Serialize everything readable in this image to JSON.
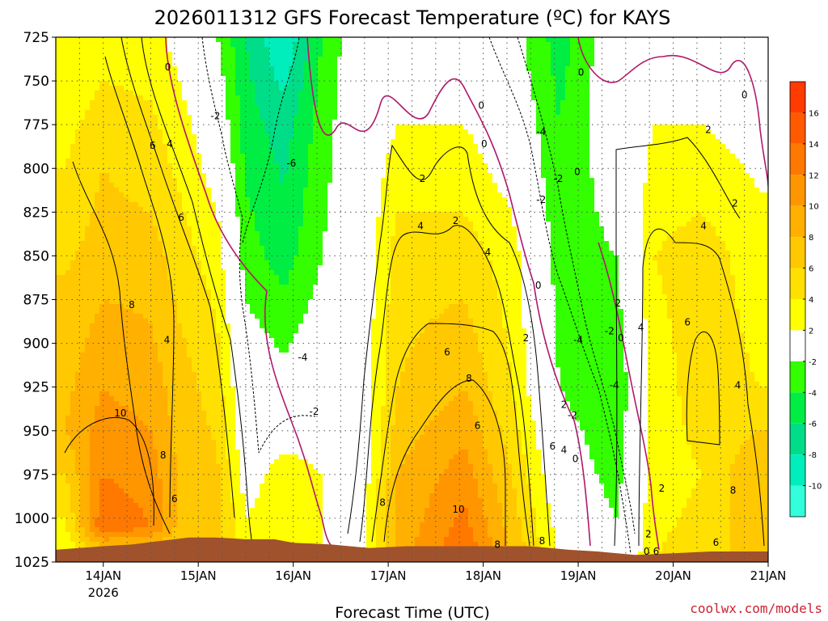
{
  "chart_data": {
    "type": "heatmap",
    "title": "2026011312 GFS Forecast Temperature (ºC) for KAYS",
    "xlabel": "Forecast Time (UTC)",
    "ylabel": "",
    "credit": "coolwx.com/models",
    "y_levels": [
      725,
      750,
      775,
      800,
      825,
      850,
      875,
      900,
      925,
      950,
      975,
      1000,
      1025
    ],
    "y_range": [
      725,
      1025
    ],
    "x_range": [
      "2026-01-13T12",
      "2026-01-21T00"
    ],
    "x_ticks": [
      {
        "day": 14,
        "label": "14JAN",
        "sub": "2026"
      },
      {
        "day": 15,
        "label": "15JAN",
        "sub": ""
      },
      {
        "day": 16,
        "label": "16JAN",
        "sub": ""
      },
      {
        "day": 17,
        "label": "17JAN",
        "sub": ""
      },
      {
        "day": 18,
        "label": "18JAN",
        "sub": ""
      },
      {
        "day": 19,
        "label": "19JAN",
        "sub": ""
      },
      {
        "day": 20,
        "label": "20JAN",
        "sub": ""
      },
      {
        "day": 21,
        "label": "21JAN",
        "sub": ""
      }
    ],
    "colorbar": {
      "labels": [
        16,
        14,
        12,
        10,
        8,
        6,
        4,
        2,
        -2,
        -4,
        -6,
        -8,
        -10
      ],
      "bins": [
        {
          "lo": 16,
          "hi": 18,
          "color": "#ff3b00"
        },
        {
          "lo": 14,
          "hi": 16,
          "color": "#ff5a00"
        },
        {
          "lo": 12,
          "hi": 14,
          "color": "#ff7800"
        },
        {
          "lo": 10,
          "hi": 12,
          "color": "#ff9600"
        },
        {
          "lo": 8,
          "hi": 10,
          "color": "#ffb000"
        },
        {
          "lo": 6,
          "hi": 8,
          "color": "#ffc800"
        },
        {
          "lo": 4,
          "hi": 6,
          "color": "#ffe000"
        },
        {
          "lo": 2,
          "hi": 4,
          "color": "#ffff00"
        },
        {
          "lo": -2,
          "hi": 2,
          "color": "#ffffff"
        },
        {
          "lo": -4,
          "hi": -2,
          "color": "#33ff00"
        },
        {
          "lo": -6,
          "hi": -4,
          "color": "#00ee44"
        },
        {
          "lo": -8,
          "hi": -6,
          "color": "#00dd88"
        },
        {
          "lo": -10,
          "hi": -8,
          "color": "#00eebb"
        },
        {
          "lo": -12,
          "hi": -10,
          "color": "#33ffdd"
        }
      ]
    },
    "ground_color": "#a0522d",
    "series": [
      {
        "values": [
          [
            13.6,
            1025,
            2
          ],
          [
            13.6,
            950,
            8
          ],
          [
            13.6,
            860,
            6
          ],
          [
            13.6,
            800,
            4
          ],
          [
            13.6,
            725,
            2
          ],
          [
            14.0,
            1025,
            3
          ],
          [
            14.0,
            1005,
            14
          ],
          [
            14.0,
            975,
            12
          ],
          [
            14.0,
            925,
            10
          ],
          [
            14.0,
            850,
            7
          ],
          [
            14.0,
            800,
            6
          ],
          [
            14.0,
            725,
            3
          ],
          [
            14.5,
            1025,
            4
          ],
          [
            14.5,
            1005,
            12
          ],
          [
            14.5,
            975,
            11
          ],
          [
            14.5,
            925,
            9
          ],
          [
            14.5,
            850,
            7
          ],
          [
            14.5,
            800,
            5
          ],
          [
            14.5,
            725,
            3
          ],
          [
            14.8,
            1025,
            5
          ],
          [
            14.8,
            1000,
            8
          ],
          [
            14.8,
            925,
            7
          ],
          [
            14.8,
            850,
            5
          ],
          [
            14.8,
            775,
            3
          ],
          [
            14.8,
            725,
            1
          ],
          [
            15.2,
            1025,
            5
          ],
          [
            15.2,
            1000,
            7
          ],
          [
            15.2,
            925,
            5
          ],
          [
            15.2,
            850,
            3
          ],
          [
            15.2,
            775,
            0
          ],
          [
            15.2,
            725,
            -2
          ],
          [
            15.5,
            1025,
            4
          ],
          [
            15.5,
            1000,
            2
          ],
          [
            15.5,
            950,
            0
          ],
          [
            15.5,
            900,
            -1
          ],
          [
            15.5,
            850,
            -3
          ],
          [
            15.5,
            775,
            -5
          ],
          [
            15.5,
            725,
            -6
          ],
          [
            15.9,
            1025,
            3
          ],
          [
            15.9,
            975,
            3
          ],
          [
            15.9,
            925,
            -1
          ],
          [
            15.9,
            850,
            -5
          ],
          [
            15.9,
            775,
            -7
          ],
          [
            15.9,
            725,
            -10
          ],
          [
            16.3,
            1025,
            2
          ],
          [
            16.3,
            975,
            2
          ],
          [
            16.3,
            925,
            0
          ],
          [
            16.3,
            850,
            -2
          ],
          [
            16.3,
            775,
            -3
          ],
          [
            16.3,
            725,
            -4
          ],
          [
            16.7,
            1025,
            1
          ],
          [
            16.7,
            975,
            0
          ],
          [
            16.7,
            925,
            0
          ],
          [
            16.7,
            850,
            0
          ],
          [
            16.7,
            725,
            0
          ],
          [
            17.1,
            1025,
            9
          ],
          [
            17.1,
            975,
            8
          ],
          [
            17.1,
            925,
            6
          ],
          [
            17.1,
            850,
            5
          ],
          [
            17.1,
            800,
            3
          ],
          [
            17.1,
            725,
            0
          ],
          [
            17.8,
            1025,
            14
          ],
          [
            17.8,
            975,
            11
          ],
          [
            17.8,
            925,
            8
          ],
          [
            17.8,
            850,
            5
          ],
          [
            17.8,
            800,
            3
          ],
          [
            17.8,
            725,
            0
          ],
          [
            18.3,
            1025,
            8
          ],
          [
            18.3,
            975,
            6
          ],
          [
            18.3,
            925,
            4
          ],
          [
            18.3,
            850,
            3
          ],
          [
            18.3,
            800,
            1
          ],
          [
            18.3,
            725,
            -1
          ],
          [
            18.8,
            1025,
            2
          ],
          [
            18.8,
            975,
            0
          ],
          [
            18.8,
            925,
            -2
          ],
          [
            18.8,
            850,
            -3
          ],
          [
            18.8,
            775,
            -4
          ],
          [
            18.8,
            725,
            -5
          ],
          [
            19.4,
            1025,
            -1
          ],
          [
            19.4,
            975,
            -3
          ],
          [
            19.4,
            925,
            -4
          ],
          [
            19.4,
            850,
            -2
          ],
          [
            19.4,
            775,
            0
          ],
          [
            19.4,
            725,
            0
          ],
          [
            19.8,
            1025,
            4
          ],
          [
            19.8,
            975,
            3
          ],
          [
            19.8,
            925,
            3
          ],
          [
            19.8,
            850,
            4
          ],
          [
            19.8,
            775,
            2
          ],
          [
            19.8,
            725,
            0
          ],
          [
            20.3,
            1025,
            5
          ],
          [
            20.3,
            975,
            4
          ],
          [
            20.3,
            925,
            5
          ],
          [
            20.3,
            850,
            5
          ],
          [
            20.3,
            800,
            3
          ],
          [
            20.3,
            725,
            0
          ],
          [
            20.9,
            1025,
            7
          ],
          [
            20.9,
            975,
            8
          ],
          [
            20.9,
            925,
            4
          ],
          [
            20.9,
            850,
            3
          ],
          [
            20.9,
            775,
            1
          ],
          [
            20.9,
            725,
            -1
          ]
        ]
      }
    ],
    "contour_labels": [
      {
        "x": 14.68,
        "y": 742,
        "v": "0"
      },
      {
        "x": 14.52,
        "y": 787,
        "v": "6"
      },
      {
        "x": 14.7,
        "y": 786,
        "v": "4"
      },
      {
        "x": 14.82,
        "y": 828,
        "v": "6"
      },
      {
        "x": 14.3,
        "y": 878,
        "v": "8"
      },
      {
        "x": 14.67,
        "y": 898,
        "v": "4"
      },
      {
        "x": 14.18,
        "y": 940,
        "v": "10"
      },
      {
        "x": 14.63,
        "y": 964,
        "v": "8"
      },
      {
        "x": 14.75,
        "y": 989,
        "v": "6"
      },
      {
        "x": 15.18,
        "y": 770,
        "v": "-2"
      },
      {
        "x": 15.98,
        "y": 797,
        "v": "-6"
      },
      {
        "x": 16.1,
        "y": 908,
        "v": "-4"
      },
      {
        "x": 16.22,
        "y": 939,
        "v": "-2"
      },
      {
        "x": 17.36,
        "y": 806,
        "v": "2"
      },
      {
        "x": 17.34,
        "y": 833,
        "v": "4"
      },
      {
        "x": 17.71,
        "y": 830,
        "v": "2"
      },
      {
        "x": 17.98,
        "y": 764,
        "v": "0"
      },
      {
        "x": 18.01,
        "y": 786,
        "v": "0"
      },
      {
        "x": 18.05,
        "y": 848,
        "v": "4"
      },
      {
        "x": 17.62,
        "y": 905,
        "v": "6"
      },
      {
        "x": 17.85,
        "y": 920,
        "v": "8"
      },
      {
        "x": 17.94,
        "y": 947,
        "v": "6"
      },
      {
        "x": 17.74,
        "y": 995,
        "v": "10"
      },
      {
        "x": 16.94,
        "y": 991,
        "v": "8"
      },
      {
        "x": 18.61,
        "y": 779,
        "v": "-4"
      },
      {
        "x": 18.79,
        "y": 806,
        "v": "-2"
      },
      {
        "x": 18.99,
        "y": 802,
        "v": "0"
      },
      {
        "x": 18.61,
        "y": 818,
        "v": "-2"
      },
      {
        "x": 18.58,
        "y": 867,
        "v": "0"
      },
      {
        "x": 18.45,
        "y": 897,
        "v": "2"
      },
      {
        "x": 18.85,
        "y": 935,
        "v": "2"
      },
      {
        "x": 18.94,
        "y": 941,
        "v": "-2"
      },
      {
        "x": 19.0,
        "y": 898,
        "v": "-4"
      },
      {
        "x": 19.33,
        "y": 893,
        "v": "-2"
      },
      {
        "x": 19.45,
        "y": 897,
        "v": "0"
      },
      {
        "x": 19.66,
        "y": 891,
        "v": "4"
      },
      {
        "x": 19.42,
        "y": 877,
        "v": "2"
      },
      {
        "x": 19.38,
        "y": 924,
        "v": "-4"
      },
      {
        "x": 18.73,
        "y": 959,
        "v": "6"
      },
      {
        "x": 18.85,
        "y": 961,
        "v": "4"
      },
      {
        "x": 18.97,
        "y": 966,
        "v": "0"
      },
      {
        "x": 19.74,
        "y": 1009,
        "v": "2"
      },
      {
        "x": 19.88,
        "y": 983,
        "v": "2"
      },
      {
        "x": 19.72,
        "y": 1019,
        "v": "0"
      },
      {
        "x": 19.82,
        "y": 1019,
        "v": "6"
      },
      {
        "x": 18.62,
        "y": 1013,
        "v": "8"
      },
      {
        "x": 19.03,
        "y": 745,
        "v": "0"
      },
      {
        "x": 20.37,
        "y": 778,
        "v": "2"
      },
      {
        "x": 20.65,
        "y": 820,
        "v": "2"
      },
      {
        "x": 20.75,
        "y": 758,
        "v": "0"
      },
      {
        "x": 20.32,
        "y": 833,
        "v": "4"
      },
      {
        "x": 20.15,
        "y": 888,
        "v": "6"
      },
      {
        "x": 20.68,
        "y": 924,
        "v": "4"
      },
      {
        "x": 20.63,
        "y": 984,
        "v": "8"
      },
      {
        "x": 20.45,
        "y": 1014,
        "v": "6"
      },
      {
        "x": 18.15,
        "y": 1015,
        "v": "8"
      }
    ]
  }
}
